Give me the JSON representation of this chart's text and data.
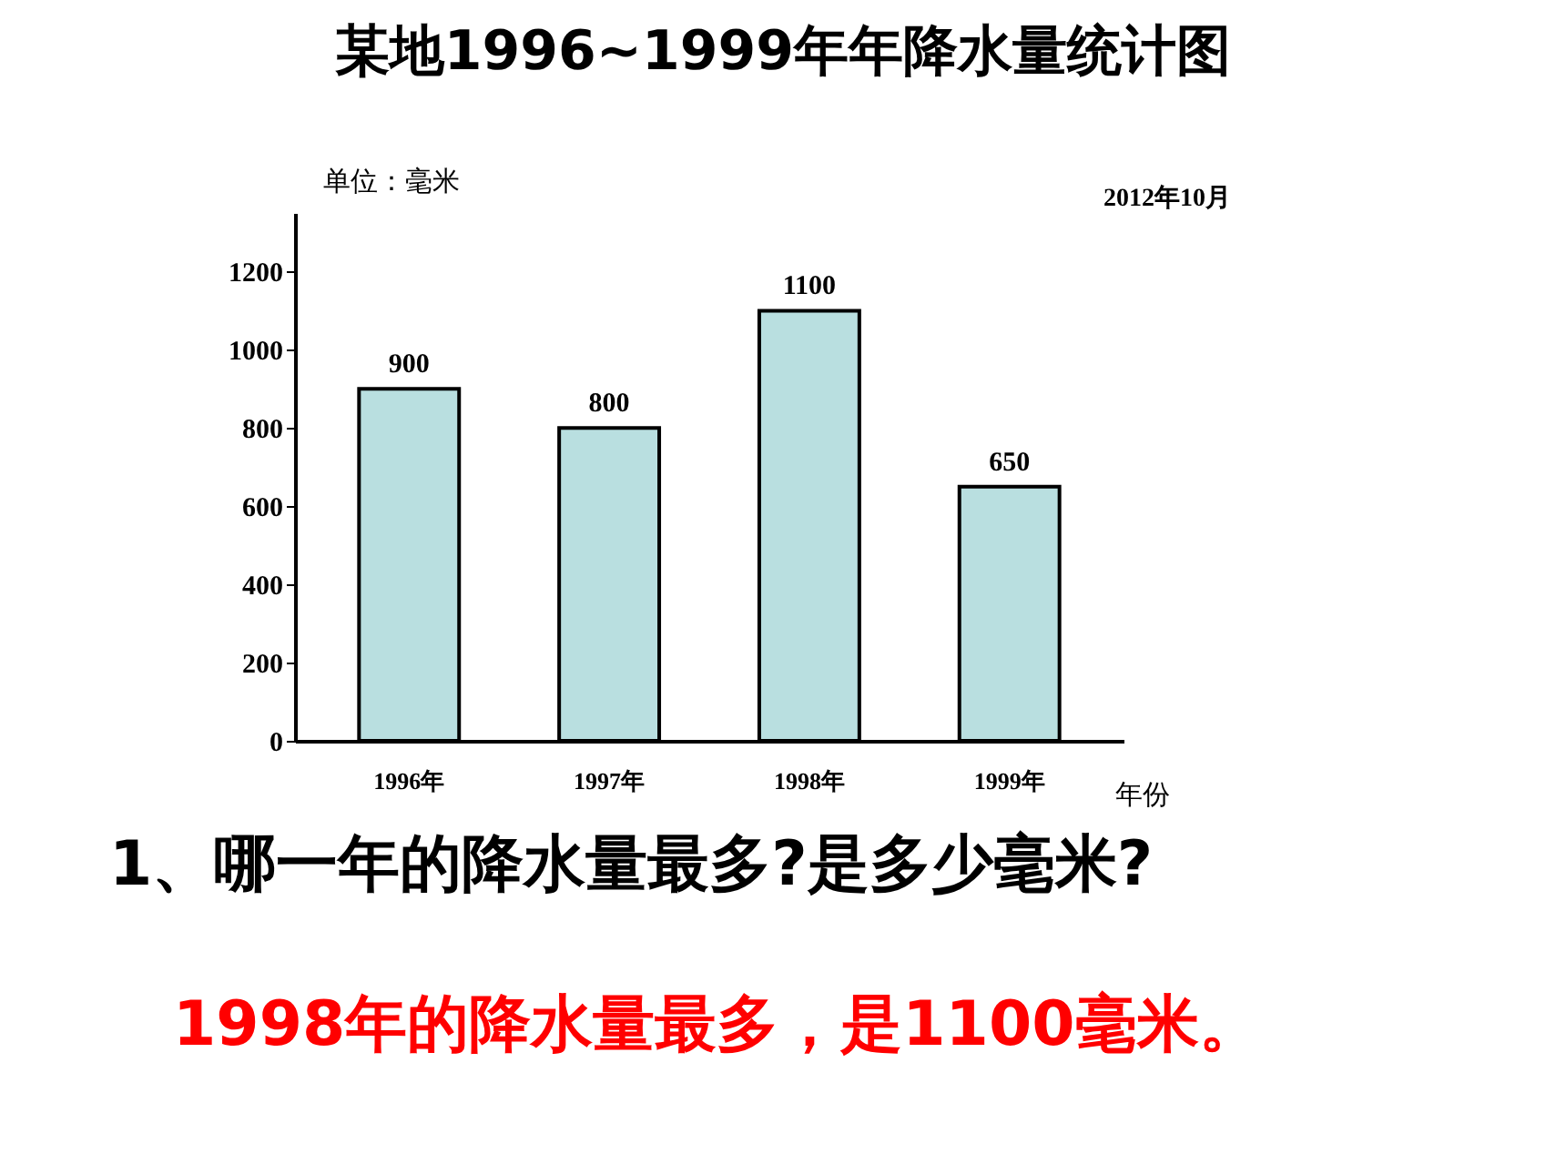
{
  "chart_data": {
    "type": "bar",
    "title": "某地1996~1999年年降水量统计图",
    "ylabel": "单位：毫米",
    "xlabel": "年份",
    "categories": [
      "1996年",
      "1997年",
      "1998年",
      "1999年"
    ],
    "values": [
      900,
      800,
      1100,
      650
    ],
    "color": "#b9dfe0",
    "data_labels": true,
    "ylim": [
      0,
      1350
    ],
    "yticks": [
      0,
      200,
      400,
      600,
      800,
      1000,
      1200
    ],
    "grid": false,
    "annotations": [
      "2012年10月",
      "1、哪一年的降水量最多?是多少毫米?",
      "1998年的降水量最多，是1100毫米。"
    ]
  }
}
